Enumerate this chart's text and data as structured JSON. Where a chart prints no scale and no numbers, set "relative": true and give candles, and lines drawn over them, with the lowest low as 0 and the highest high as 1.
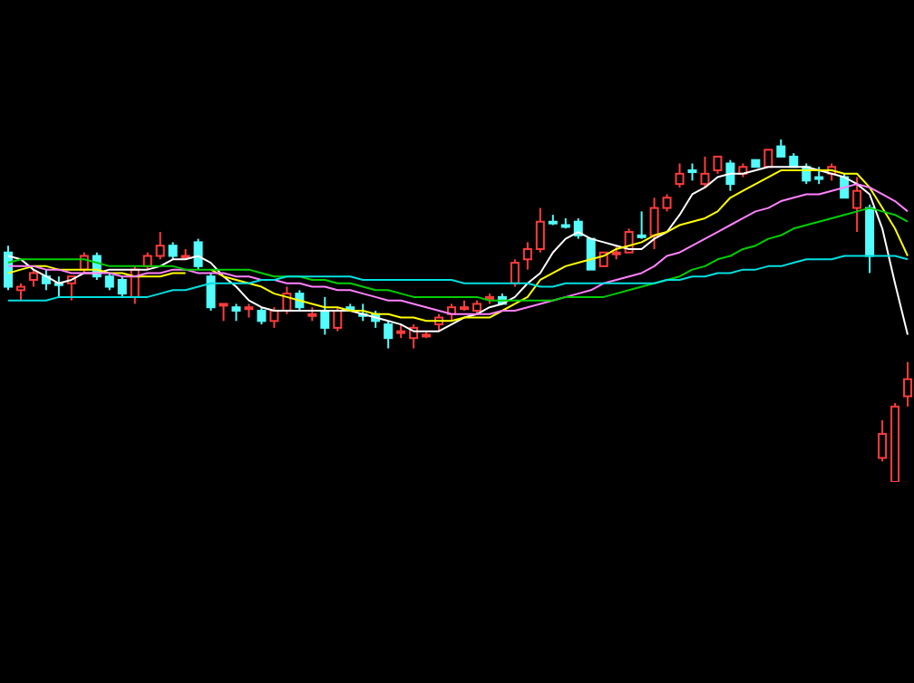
{
  "chart_data": {
    "type": "candlestick",
    "relative": true,
    "categories": [
      null,
      null,
      null,
      null,
      null,
      null,
      null,
      null,
      null,
      null,
      null,
      null,
      null,
      null,
      null,
      null,
      null,
      null,
      null,
      null,
      null,
      null,
      null,
      null,
      null,
      null,
      null,
      null,
      null,
      null,
      null,
      null,
      null,
      null,
      null,
      null,
      null,
      null,
      null,
      null,
      null,
      null,
      null,
      null,
      null,
      null,
      null,
      null,
      null,
      null,
      null,
      null,
      null,
      null,
      null,
      null,
      null,
      null,
      null,
      null,
      null,
      null,
      null,
      null,
      null,
      null,
      null,
      null,
      null,
      null,
      null,
      null
    ],
    "ohlc": [
      [
        0.67,
        0.69,
        0.56,
        0.57
      ],
      [
        0.56,
        0.58,
        0.53,
        0.57
      ],
      [
        0.59,
        0.62,
        0.57,
        0.61
      ],
      [
        0.6,
        0.62,
        0.56,
        0.58
      ],
      [
        0.58,
        0.6,
        0.54,
        0.58
      ],
      [
        0.58,
        0.6,
        0.53,
        0.6
      ],
      [
        0.62,
        0.67,
        0.61,
        0.66
      ],
      [
        0.66,
        0.67,
        0.59,
        0.6
      ],
      [
        0.6,
        0.61,
        0.56,
        0.57
      ],
      [
        0.59,
        0.6,
        0.54,
        0.55
      ],
      [
        0.54,
        0.63,
        0.52,
        0.62
      ],
      [
        0.63,
        0.67,
        0.62,
        0.66
      ],
      [
        0.66,
        0.73,
        0.65,
        0.69
      ],
      [
        0.69,
        0.7,
        0.65,
        0.66
      ],
      [
        0.66,
        0.68,
        0.65,
        0.66
      ],
      [
        0.7,
        0.71,
        0.62,
        0.63
      ],
      [
        0.6,
        0.61,
        0.5,
        0.51
      ],
      [
        0.52,
        0.52,
        0.47,
        0.52
      ],
      [
        0.51,
        0.52,
        0.47,
        0.5
      ],
      [
        0.51,
        0.52,
        0.48,
        0.51
      ],
      [
        0.5,
        0.51,
        0.46,
        0.47
      ],
      [
        0.47,
        0.51,
        0.45,
        0.5
      ],
      [
        0.5,
        0.57,
        0.49,
        0.55
      ],
      [
        0.55,
        0.56,
        0.5,
        0.51
      ],
      [
        0.49,
        0.51,
        0.47,
        0.49
      ],
      [
        0.5,
        0.54,
        0.43,
        0.45
      ],
      [
        0.45,
        0.51,
        0.44,
        0.5
      ],
      [
        0.51,
        0.52,
        0.5,
        0.5
      ],
      [
        0.49,
        0.52,
        0.47,
        0.49
      ],
      [
        0.49,
        0.5,
        0.45,
        0.47
      ],
      [
        0.46,
        0.47,
        0.39,
        0.42
      ],
      [
        0.44,
        0.46,
        0.42,
        0.44
      ],
      [
        0.42,
        0.46,
        0.39,
        0.45
      ],
      [
        0.43,
        0.44,
        0.42,
        0.43
      ],
      [
        0.46,
        0.49,
        0.44,
        0.48
      ],
      [
        0.49,
        0.52,
        0.47,
        0.51
      ],
      [
        0.51,
        0.53,
        0.5,
        0.51
      ],
      [
        0.5,
        0.53,
        0.49,
        0.52
      ],
      [
        0.54,
        0.55,
        0.52,
        0.54
      ],
      [
        0.54,
        0.55,
        0.52,
        0.52
      ],
      [
        0.58,
        0.65,
        0.57,
        0.64
      ],
      [
        0.65,
        0.7,
        0.62,
        0.68
      ],
      [
        0.68,
        0.8,
        0.67,
        0.76
      ],
      [
        0.76,
        0.78,
        0.75,
        0.76
      ],
      [
        0.75,
        0.77,
        0.74,
        0.75
      ],
      [
        0.76,
        0.77,
        0.71,
        0.72
      ],
      [
        0.71,
        0.71,
        0.62,
        0.62
      ],
      [
        0.63,
        0.67,
        0.63,
        0.67
      ],
      [
        0.67,
        0.69,
        0.65,
        0.67
      ],
      [
        0.67,
        0.74,
        0.67,
        0.73
      ],
      [
        0.72,
        0.79,
        0.71,
        0.72
      ],
      [
        0.72,
        0.83,
        0.68,
        0.8
      ],
      [
        0.8,
        0.84,
        0.79,
        0.83
      ],
      [
        0.87,
        0.93,
        0.86,
        0.9
      ],
      [
        0.91,
        0.93,
        0.88,
        0.91
      ],
      [
        0.87,
        0.95,
        0.86,
        0.9
      ],
      [
        0.91,
        0.95,
        0.9,
        0.95
      ],
      [
        0.93,
        0.94,
        0.85,
        0.87
      ],
      [
        0.9,
        0.93,
        0.89,
        0.92
      ],
      [
        0.94,
        0.94,
        0.92,
        0.92
      ],
      [
        0.92,
        0.97,
        0.92,
        0.97
      ],
      [
        0.98,
        1,
        0.95,
        0.95
      ],
      [
        0.95,
        0.96,
        0.92,
        0.92
      ],
      [
        0.92,
        0.93,
        0.87,
        0.88
      ],
      [
        0.89,
        0.92,
        0.87,
        0.89
      ],
      [
        0.9,
        0.93,
        0.88,
        0.92
      ],
      [
        0.89,
        0.9,
        0.83,
        0.83
      ],
      [
        0.8,
        0.89,
        0.73,
        0.85
      ],
      [
        0.8,
        0.81,
        0.61,
        0.66
      ],
      [
        0.07,
        0.18,
        0.06,
        0.14
      ],
      [
        0,
        0.23,
        0,
        0.22
      ],
      [
        0.25,
        0.35,
        0.22,
        0.3
      ]
    ],
    "colors": [
      "#54fcfc",
      "#ff3c3c",
      "#ff3c3c",
      "#54fcfc",
      "#54fcfc",
      "#ff3c3c",
      "#ff3c3c",
      "#54fcfc",
      "#54fcfc",
      "#54fcfc",
      "#ff3c3c",
      "#ff3c3c",
      "#ff3c3c",
      "#54fcfc",
      "#ff3c3c",
      "#54fcfc",
      "#54fcfc",
      "#ff3c3c",
      "#54fcfc",
      "#ff3c3c",
      "#54fcfc",
      "#ff3c3c",
      "#ff3c3c",
      "#54fcfc",
      "#ff3c3c",
      "#54fcfc",
      "#ff3c3c",
      "#54fcfc",
      "#54fcfc",
      "#54fcfc",
      "#54fcfc",
      "#ff3c3c",
      "#ff3c3c",
      "#ff3c3c",
      "#ff3c3c",
      "#ff3c3c",
      "#ff3c3c",
      "#ff3c3c",
      "#ff3c3c",
      "#54fcfc",
      "#ff3c3c",
      "#ff3c3c",
      "#ff3c3c",
      "#54fcfc",
      "#54fcfc",
      "#54fcfc",
      "#54fcfc",
      "#ff3c3c",
      "#ff3c3c",
      "#ff3c3c",
      "#54fcfc",
      "#ff3c3c",
      "#ff3c3c",
      "#ff3c3c",
      "#54fcfc",
      "#ff3c3c",
      "#ff3c3c",
      "#54fcfc",
      "#ff3c3c",
      "#54fcfc",
      "#ff3c3c",
      "#54fcfc",
      "#54fcfc",
      "#54fcfc",
      "#54fcfc",
      "#ff3c3c",
      "#54fcfc",
      "#ff3c3c",
      "#54fcfc",
      "#ff3c3c",
      "#ff3c3c",
      "#ff3c3c"
    ],
    "series": [
      {
        "type": "line",
        "color": "#ffffff",
        "values": [
          0.66,
          0.65,
          0.62,
          0.6,
          0.58,
          0.59,
          0.61,
          0.61,
          0.62,
          0.62,
          0.62,
          0.62,
          0.63,
          0.65,
          0.65,
          0.66,
          0.64,
          0.6,
          0.57,
          0.53,
          0.51,
          0.5,
          0.5,
          0.5,
          0.5,
          0.5,
          0.5,
          0.5,
          0.49,
          0.48,
          0.47,
          0.46,
          0.44,
          0.44,
          0.44,
          0.46,
          0.48,
          0.49,
          0.51,
          0.52,
          0.54,
          0.58,
          0.61,
          0.67,
          0.71,
          0.73,
          0.71,
          0.7,
          0.69,
          0.68,
          0.68,
          0.71,
          0.73,
          0.78,
          0.84,
          0.86,
          0.89,
          0.9,
          0.9,
          0.91,
          0.92,
          0.92,
          0.92,
          0.92,
          0.91,
          0.9,
          0.89,
          0.87,
          0.84,
          0.74,
          0.58,
          0.43
        ]
      },
      {
        "type": "line",
        "color": "#ffff00",
        "values": [
          0.61,
          0.62,
          0.63,
          0.63,
          0.62,
          0.62,
          0.62,
          0.62,
          0.61,
          0.61,
          0.6,
          0.6,
          0.6,
          0.61,
          0.61,
          null,
          0.62,
          0.6,
          0.59,
          0.58,
          0.57,
          0.55,
          0.54,
          0.53,
          0.52,
          0.51,
          0.51,
          0.5,
          0.5,
          0.49,
          0.49,
          0.48,
          0.48,
          0.47,
          0.47,
          0.47,
          0.48,
          0.48,
          0.48,
          0.5,
          0.52,
          0.54,
          0.59,
          0.61,
          0.63,
          0.64,
          0.65,
          0.66,
          0.68,
          0.69,
          0.7,
          0.72,
          0.73,
          0.75,
          0.76,
          0.77,
          0.79,
          0.83,
          0.85,
          0.87,
          0.89,
          0.91,
          0.91,
          0.91,
          0.91,
          0.91,
          0.9,
          0.9,
          0.86,
          0.8,
          0.74,
          0.66
        ]
      },
      {
        "type": "line",
        "color": "#ff80ff",
        "values": [
          0.63,
          0.63,
          0.63,
          0.62,
          0.62,
          0.61,
          0.61,
          0.61,
          0.61,
          0.6,
          0.6,
          0.61,
          0.61,
          0.62,
          0.62,
          0.61,
          0.61,
          0.61,
          0.6,
          0.6,
          0.59,
          0.59,
          0.58,
          0.58,
          0.57,
          0.57,
          0.56,
          0.56,
          0.55,
          0.54,
          0.53,
          0.53,
          0.52,
          0.51,
          0.5,
          0.49,
          0.49,
          0.49,
          0.49,
          0.5,
          0.5,
          0.51,
          0.52,
          0.53,
          0.54,
          0.55,
          0.56,
          0.58,
          0.59,
          0.6,
          0.61,
          0.63,
          0.66,
          0.67,
          0.69,
          0.71,
          0.73,
          0.75,
          0.77,
          0.79,
          0.8,
          0.82,
          0.83,
          0.84,
          0.84,
          0.85,
          0.86,
          0.87,
          0.86,
          0.84,
          0.82,
          0.79
        ]
      },
      {
        "type": "line",
        "color": "#00d000",
        "values": [
          0.64,
          0.65,
          0.65,
          0.65,
          0.65,
          0.65,
          0.65,
          0.64,
          0.63,
          0.63,
          0.63,
          0.63,
          0.63,
          0.63,
          0.62,
          0.62,
          0.62,
          0.62,
          0.62,
          0.62,
          0.61,
          0.6,
          0.6,
          0.6,
          0.59,
          0.59,
          0.58,
          0.58,
          0.57,
          0.56,
          0.56,
          0.55,
          0.54,
          0.54,
          0.54,
          0.54,
          0.54,
          0.54,
          0.53,
          0.53,
          0.53,
          0.53,
          0.53,
          0.53,
          0.54,
          0.54,
          0.54,
          0.54,
          0.55,
          0.56,
          0.57,
          0.58,
          0.59,
          0.6,
          0.62,
          0.63,
          0.65,
          0.66,
          0.68,
          0.69,
          0.71,
          0.72,
          0.74,
          0.75,
          0.76,
          0.77,
          0.78,
          0.79,
          0.8,
          0.79,
          0.78,
          0.76
        ]
      },
      {
        "type": "line",
        "color": "#00e0e0",
        "values": [
          0.53,
          0.53,
          0.53,
          0.53,
          0.54,
          0.54,
          0.54,
          0.54,
          0.54,
          0.54,
          0.54,
          0.54,
          0.55,
          0.56,
          0.56,
          0.57,
          0.58,
          0.58,
          0.58,
          0.58,
          0.59,
          0.59,
          0.6,
          0.6,
          0.6,
          0.6,
          0.6,
          0.6,
          0.59,
          0.59,
          0.59,
          0.59,
          0.59,
          0.59,
          0.59,
          0.59,
          0.58,
          0.58,
          0.58,
          0.58,
          0.58,
          0.58,
          0.57,
          0.57,
          0.58,
          0.58,
          0.58,
          0.58,
          0.58,
          0.58,
          0.58,
          0.58,
          0.59,
          0.59,
          0.6,
          0.6,
          0.61,
          0.61,
          0.62,
          0.62,
          0.63,
          0.63,
          0.64,
          0.65,
          0.65,
          0.65,
          0.66,
          0.66,
          0.66,
          0.66,
          0.66,
          0.65
        ]
      }
    ]
  }
}
